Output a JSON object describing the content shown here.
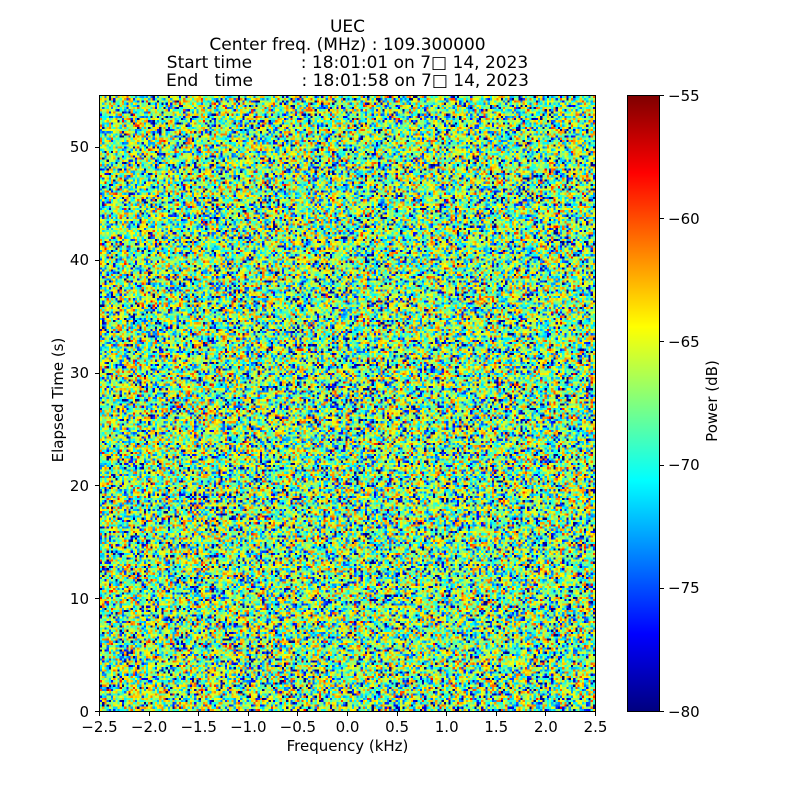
{
  "chart_data": {
    "type": "heatmap",
    "title_lines": [
      "UEC",
      "Center freq. (MHz) : 109.300000",
      "Start time         : 18:01:01 on 7□ 14, 2023",
      "End   time         : 18:01:58 on 7□ 14, 2023"
    ],
    "xlabel": "Frequency (kHz)",
    "ylabel": "Elapsed Time (s)",
    "xlim": [
      -2.5,
      2.5
    ],
    "ylim": [
      0,
      54.6
    ],
    "xticks": {
      "values": [
        -2.5,
        -2.0,
        -1.5,
        -1.0,
        -0.5,
        0.0,
        0.5,
        1.0,
        1.5,
        2.0,
        2.5
      ],
      "labels": [
        "−2.5",
        "−2.0",
        "−1.5",
        "−1.0",
        "−0.5",
        "0.0",
        "0.5",
        "1.0",
        "1.5",
        "2.0",
        "2.5"
      ]
    },
    "yticks": {
      "values": [
        0,
        10,
        20,
        30,
        40,
        50
      ],
      "labels": [
        "0",
        "10",
        "20",
        "30",
        "40",
        "50"
      ]
    },
    "grid": false,
    "legend": "none",
    "colorbar": {
      "label": "Power (dB)",
      "vmin": -80,
      "vmax": -55,
      "tick_values": [
        -55,
        -60,
        -65,
        -70,
        -75,
        -80
      ],
      "tick_labels": [
        "−55",
        "−60",
        "−65",
        "−70",
        "−75",
        "−80"
      ],
      "colormap": "jet",
      "colormap_stops": [
        [
          0.0,
          "#000080"
        ],
        [
          0.125,
          "#0000ff"
        ],
        [
          0.375,
          "#00ffff"
        ],
        [
          0.625,
          "#ffff00"
        ],
        [
          0.875,
          "#ff0000"
        ],
        [
          1.0,
          "#800000"
        ]
      ]
    },
    "heatmap": {
      "description": "broadband random noise spectrogram, no visible signal structure",
      "distribution": "exponential-power",
      "mean_power_db": -66,
      "grid_cols": 226,
      "grid_rows": 280,
      "seed": 714
    },
    "background": "#ffffff",
    "text_color": "#000000"
  }
}
